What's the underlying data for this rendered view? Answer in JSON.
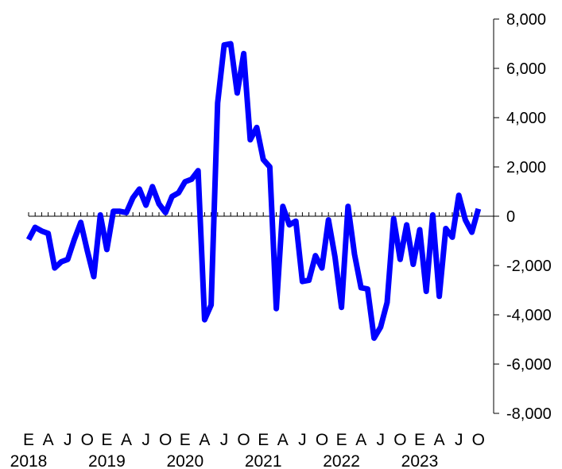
{
  "chart_data": {
    "type": "line",
    "title": "",
    "xlabel": "",
    "ylabel": "",
    "ylim": [
      -8000,
      8000
    ],
    "y_ticks": [
      8000,
      6000,
      4000,
      2000,
      0,
      -2000,
      -4000,
      -6000,
      -8000
    ],
    "y_tick_labels": [
      "8,000",
      "6,000",
      "4,000",
      "2,000",
      "0",
      "-2,000",
      "-4,000",
      "-6,000",
      "-8,000"
    ],
    "y_axis_position": "right",
    "grid": false,
    "series_color": "#0000ff",
    "month_labels": [
      "E",
      "A",
      "J",
      "O",
      "E",
      "A",
      "J",
      "O",
      "E",
      "A",
      "J",
      "O",
      "E",
      "A",
      "J",
      "O",
      "E",
      "A",
      "J",
      "O",
      "E",
      "A",
      "J",
      "O"
    ],
    "year_labels": [
      "2018",
      "2019",
      "2020",
      "2021",
      "2022",
      "2023"
    ],
    "x_start": "2018-01",
    "x_end": "2023-12",
    "series": [
      {
        "values": [
          -950,
          -450,
          -600,
          -700,
          -2100,
          -1850,
          -1750,
          -950,
          -250,
          -1400,
          -2450,
          50,
          -1350,
          200,
          200,
          150,
          750,
          1100,
          450,
          1200,
          500,
          150,
          800,
          950,
          1400,
          1500,
          1850,
          -4200,
          -3600,
          4600,
          6950,
          7000,
          5000,
          6600,
          3100,
          3600,
          2300,
          2000,
          -3750,
          400,
          -350,
          -200,
          -2650,
          -2600,
          -1600,
          -2100,
          -150,
          -1650,
          -3700,
          400,
          -1550,
          -2900,
          -2950,
          -4950,
          -4500,
          -3500,
          -100,
          -1750,
          -350,
          -1950,
          -550,
          -3050,
          50,
          -3250,
          -500,
          -850,
          850,
          -150,
          -650,
          300
        ]
      }
    ]
  }
}
